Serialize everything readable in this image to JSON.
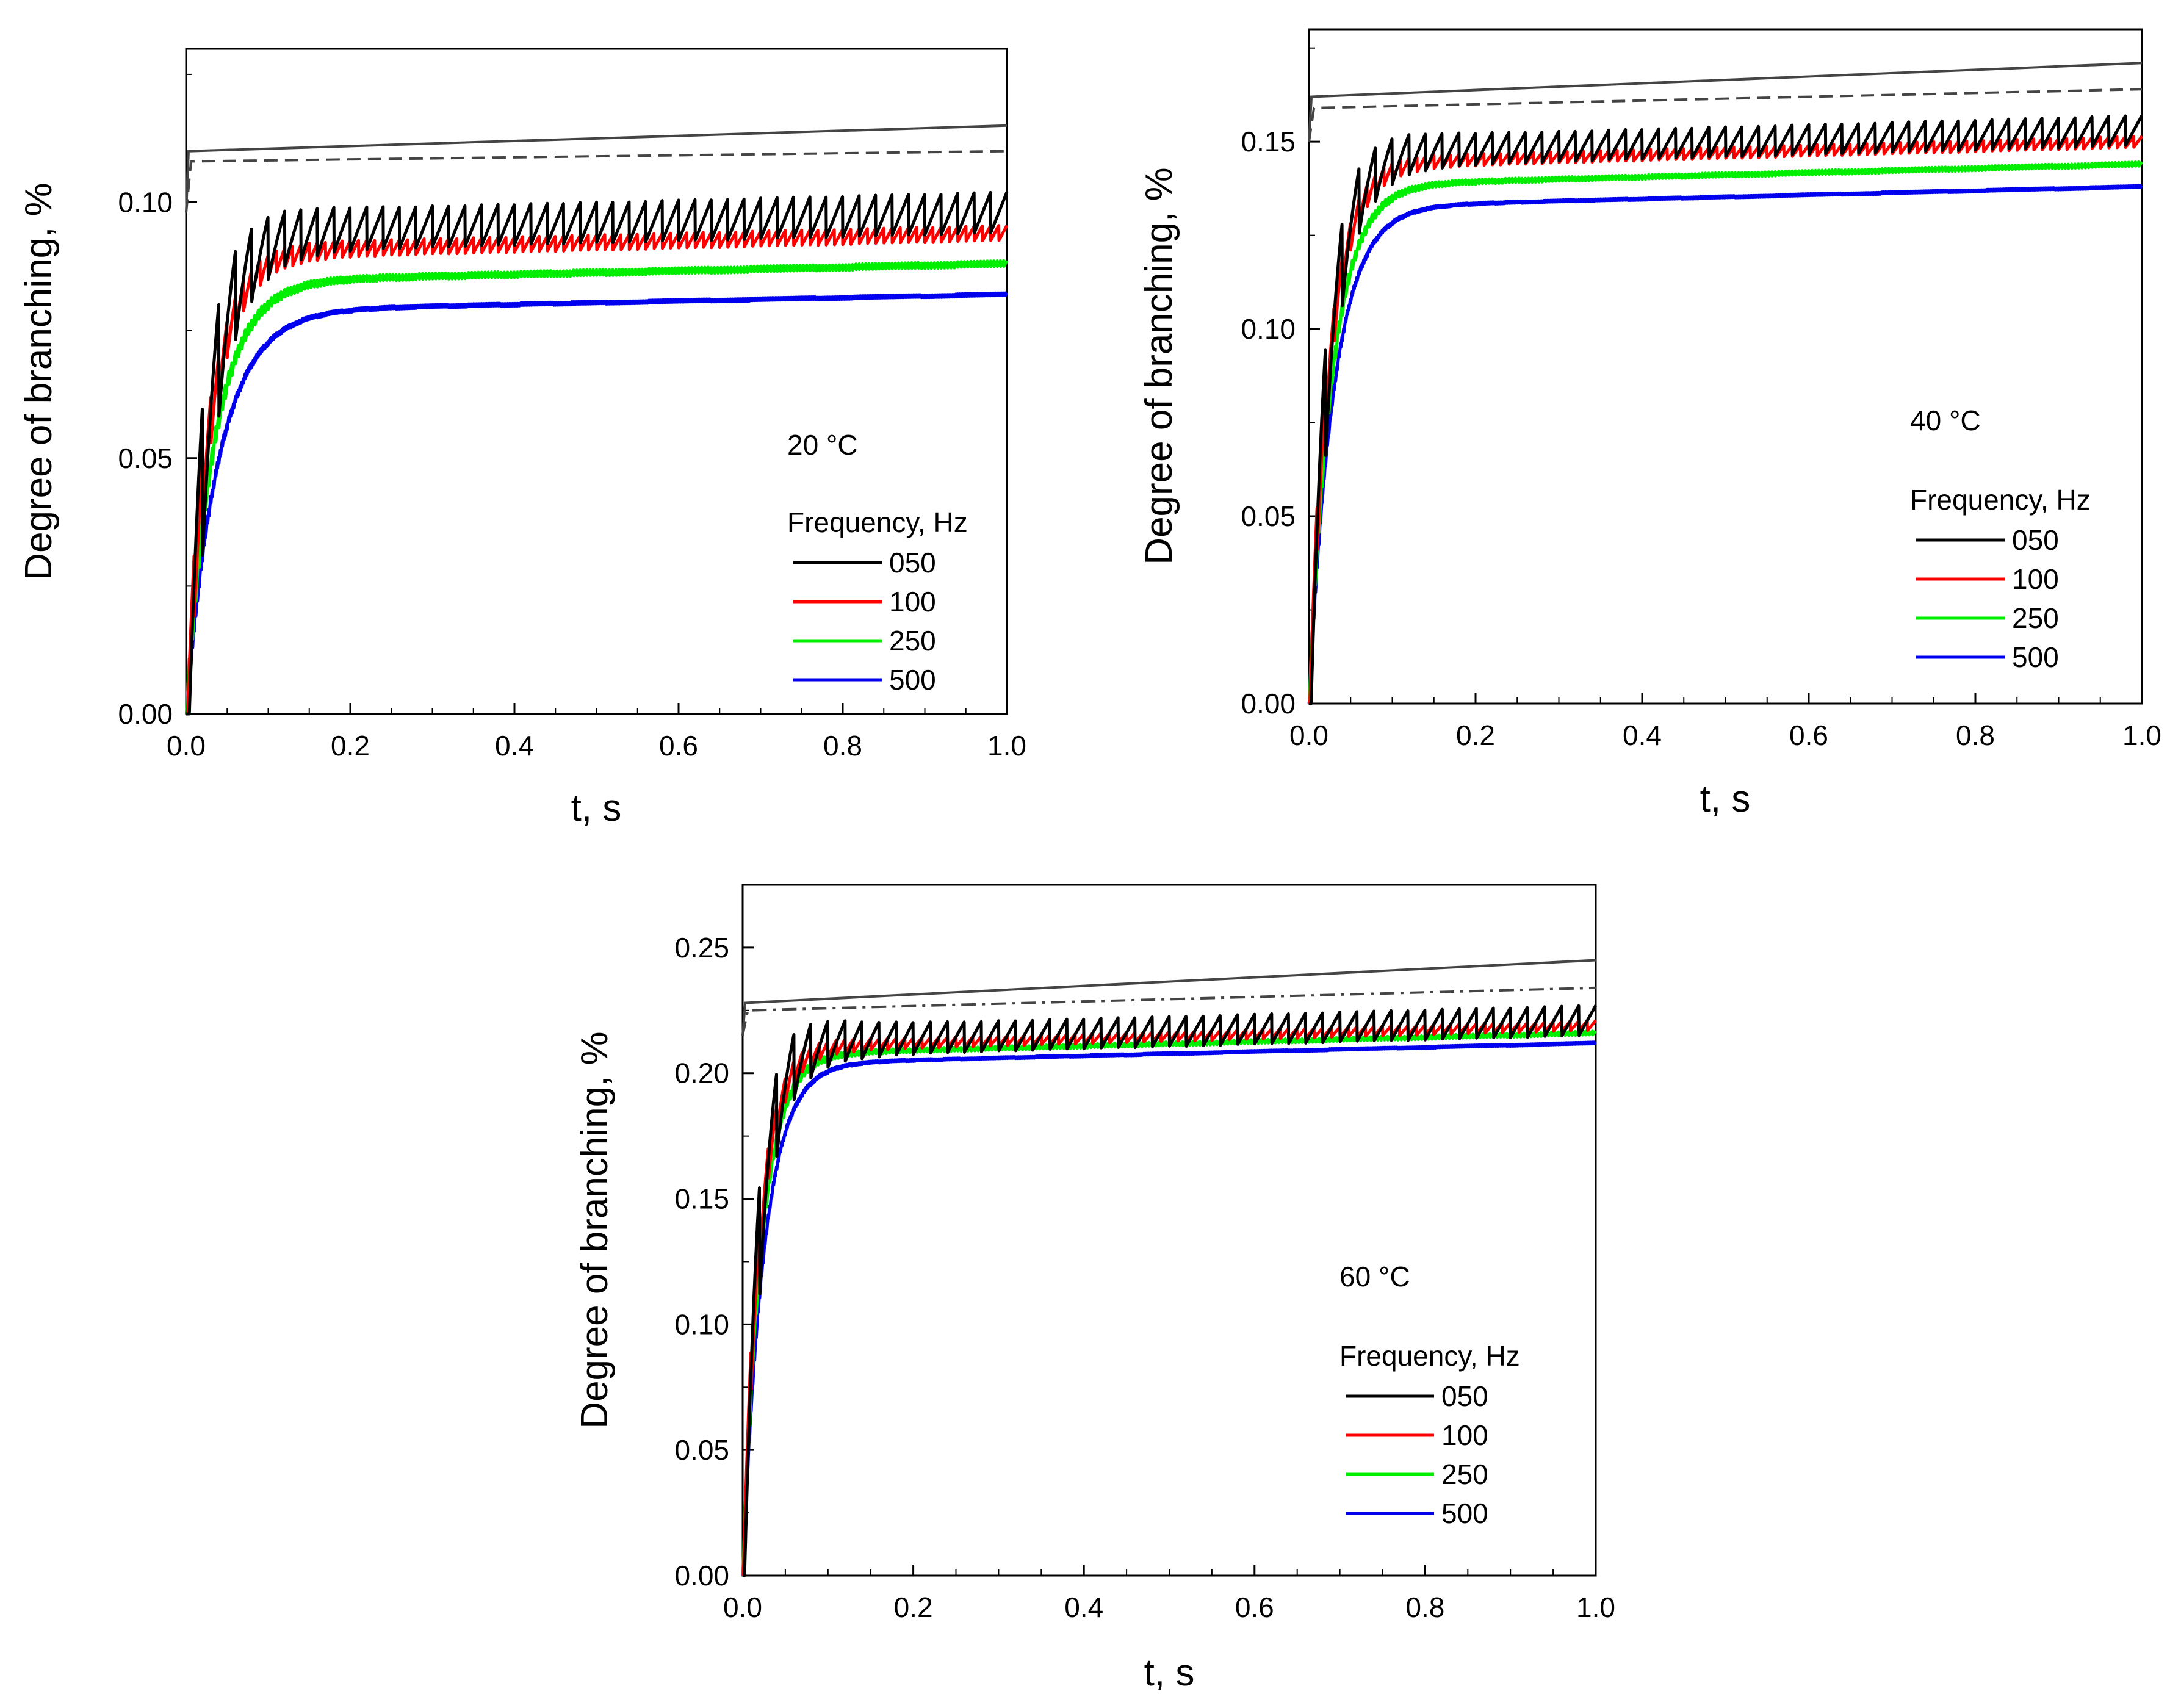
{
  "chart_data": [
    {
      "type": "line",
      "panel_label": "20 °C",
      "xlabel": "t, s",
      "ylabel": "Degree of branching, %",
      "xlim": [
        0.0,
        1.0
      ],
      "ylim": [
        0.0,
        0.13
      ],
      "x_ticks": [
        "0.0",
        "0.2",
        "0.4",
        "0.6",
        "0.8",
        "1.0"
      ],
      "y_ticks": [
        "0.00",
        "0.05",
        "0.10"
      ],
      "legend_title": "Frequency, Hz",
      "reference_lines": [
        {
          "style": "solid",
          "color": "#444444",
          "x": [
            0.0,
            0.003,
            1.0
          ],
          "y": [
            0.098,
            0.11,
            0.115
          ]
        },
        {
          "style": "dashed",
          "color": "#444444",
          "x": [
            0.0,
            0.006,
            1.0
          ],
          "y": [
            0.098,
            0.108,
            0.11
          ]
        }
      ],
      "series": [
        {
          "name": "050",
          "color": "#000000",
          "frequency_hz": 50,
          "plateau": 0.098,
          "rise_tau": 0.03,
          "osc_amp": 0.004
        },
        {
          "name": "100",
          "color": "#ff0000",
          "frequency_hz": 100,
          "plateau": 0.094,
          "rise_tau": 0.03,
          "osc_amp": 0.0015
        },
        {
          "name": "250",
          "color": "#00ee00",
          "frequency_hz": 250,
          "plateau": 0.088,
          "rise_tau": 0.035,
          "osc_amp": 0.0006
        },
        {
          "name": "500",
          "color": "#0000ee",
          "frequency_hz": 500,
          "plateau": 0.082,
          "rise_tau": 0.04,
          "osc_amp": 0.0003
        }
      ]
    },
    {
      "type": "line",
      "panel_label": "40 °C",
      "xlabel": "t, s",
      "ylabel": "Degree of branching, %",
      "xlim": [
        0.0,
        1.0
      ],
      "ylim": [
        0.0,
        0.18
      ],
      "x_ticks": [
        "0.0",
        "0.2",
        "0.4",
        "0.6",
        "0.8",
        "1.0"
      ],
      "y_ticks": [
        "0.00",
        "0.05",
        "0.10",
        "0.15"
      ],
      "legend_title": "Frequency, Hz",
      "reference_lines": [
        {
          "style": "solid",
          "color": "#444444",
          "x": [
            0.0,
            0.003,
            1.0
          ],
          "y": [
            0.15,
            0.162,
            0.171
          ]
        },
        {
          "style": "dashed",
          "color": "#444444",
          "x": [
            0.0,
            0.006,
            1.0
          ],
          "y": [
            0.15,
            0.159,
            0.164
          ]
        }
      ],
      "series": [
        {
          "name": "050",
          "color": "#000000",
          "frequency_hz": 50,
          "plateau": 0.153,
          "rise_tau": 0.025,
          "osc_amp": 0.004
        },
        {
          "name": "100",
          "color": "#ff0000",
          "frequency_hz": 100,
          "plateau": 0.15,
          "rise_tau": 0.025,
          "osc_amp": 0.0015
        },
        {
          "name": "250",
          "color": "#00ee00",
          "frequency_hz": 250,
          "plateau": 0.144,
          "rise_tau": 0.028,
          "osc_amp": 0.0006
        },
        {
          "name": "500",
          "color": "#0000ee",
          "frequency_hz": 500,
          "plateau": 0.138,
          "rise_tau": 0.03,
          "osc_amp": 0.0003
        }
      ]
    },
    {
      "type": "line",
      "panel_label": "60 °C",
      "xlabel": "t, s",
      "ylabel": "Degree of branching, %",
      "xlim": [
        0.0,
        1.0
      ],
      "ylim": [
        0.0,
        0.275
      ],
      "x_ticks": [
        "0.0",
        "0.2",
        "0.4",
        "0.6",
        "0.8",
        "1.0"
      ],
      "y_ticks": [
        "0.00",
        "0.05",
        "0.10",
        "0.15",
        "0.20",
        "0.25"
      ],
      "legend_title": "Frequency, Hz",
      "reference_lines": [
        {
          "style": "solid",
          "color": "#444444",
          "x": [
            0.0,
            0.003,
            1.0
          ],
          "y": [
            0.215,
            0.228,
            0.245
          ]
        },
        {
          "style": "dashdot",
          "color": "#444444",
          "x": [
            0.0,
            0.006,
            1.0
          ],
          "y": [
            0.215,
            0.225,
            0.234
          ]
        }
      ],
      "series": [
        {
          "name": "050",
          "color": "#000000",
          "frequency_hz": 50,
          "plateau": 0.221,
          "rise_tau": 0.02,
          "osc_amp": 0.006
        },
        {
          "name": "100",
          "color": "#ff0000",
          "frequency_hz": 100,
          "plateau": 0.219,
          "rise_tau": 0.02,
          "osc_amp": 0.002
        },
        {
          "name": "250",
          "color": "#00ee00",
          "frequency_hz": 250,
          "plateau": 0.216,
          "rise_tau": 0.022,
          "osc_amp": 0.0008
        },
        {
          "name": "500",
          "color": "#0000ee",
          "frequency_hz": 500,
          "plateau": 0.212,
          "rise_tau": 0.025,
          "osc_amp": 0.0004
        }
      ]
    }
  ]
}
